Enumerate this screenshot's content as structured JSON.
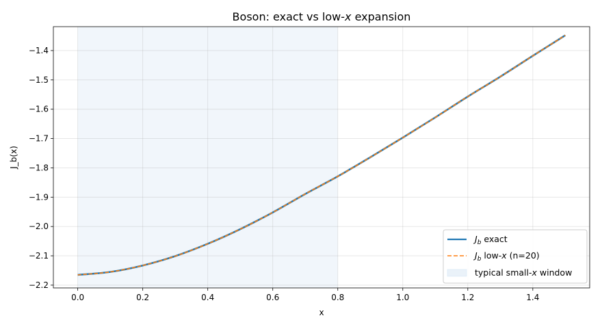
{
  "chart_data": {
    "type": "line",
    "title": "Boson: exact vs low-",
    "title_var": "x",
    "title_suffix": " expansion",
    "xlabel": "x",
    "ylabel": "J_b(x)",
    "xlim": [
      -0.075,
      1.575
    ],
    "ylim": [
      -2.2095,
      -1.3185
    ],
    "xticks": [
      0.0,
      0.2,
      0.4,
      0.6,
      0.8,
      1.0,
      1.2,
      1.4
    ],
    "xtick_labels": [
      "0.0",
      "0.2",
      "0.4",
      "0.6",
      "0.8",
      "1.0",
      "1.2",
      "1.4"
    ],
    "yticks": [
      -2.2,
      -2.1,
      -2.0,
      -1.9,
      -1.8,
      -1.7,
      -1.6,
      -1.5,
      -1.4
    ],
    "ytick_labels": [
      "−2.2",
      "−2.1",
      "−2.0",
      "−1.9",
      "−1.8",
      "−1.7",
      "−1.6",
      "−1.5",
      "−1.4"
    ],
    "grid": true,
    "legend_position": "lower-right",
    "shaded_region": {
      "x": [
        0.0,
        0.8
      ],
      "color": "#d6e6f4"
    },
    "x": [
      0.0,
      0.1,
      0.2,
      0.3,
      0.4,
      0.5,
      0.6,
      0.7,
      0.8,
      0.9,
      1.0,
      1.1,
      1.2,
      1.3,
      1.4,
      1.5
    ],
    "series": [
      {
        "name": "exact",
        "name_sub": "b",
        "name_prefix": "J",
        "color": "#1f77b4",
        "style": "solid",
        "values": [
          -2.165,
          -2.155,
          -2.133,
          -2.101,
          -2.059,
          -2.009,
          -1.952,
          -1.889,
          -1.829,
          -1.764,
          -1.697,
          -1.628,
          -1.557,
          -1.489,
          -1.418,
          -1.348
        ]
      },
      {
        "name": "low-x (n=20)",
        "name_sub": "b",
        "name_prefix": "J",
        "legend_mid": " low-",
        "legend_var": "x",
        "legend_end": " (n=20)",
        "color": "#ff7f0e",
        "style": "dashed",
        "values": [
          -2.165,
          -2.155,
          -2.133,
          -2.101,
          -2.059,
          -2.009,
          -1.952,
          -1.889,
          -1.829,
          -1.764,
          -1.697,
          -1.628,
          -1.557,
          -1.489,
          -1.418,
          -1.348
        ]
      }
    ],
    "legend_window": {
      "prefix": "typical small-",
      "var": "x",
      "suffix": " window"
    }
  }
}
